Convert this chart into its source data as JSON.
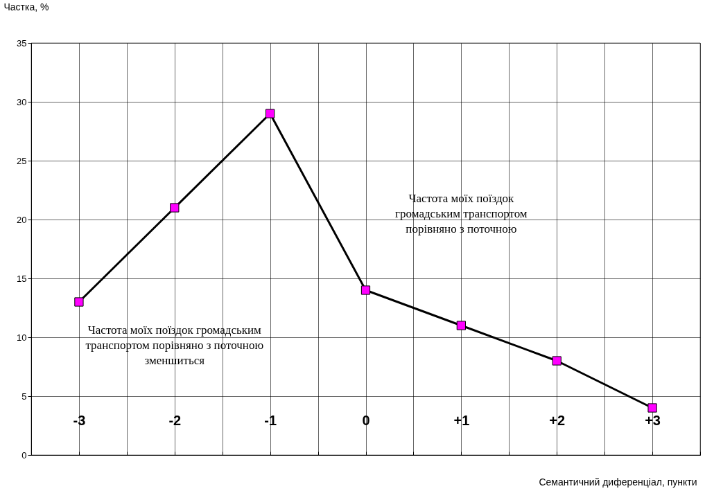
{
  "chart_data": {
    "type": "line",
    "xlabel": "Семантичний диференціал, пункти",
    "ylabel": "Частка, %",
    "categories": [
      "-3",
      "-2",
      "-1",
      "0",
      "+1",
      "+2",
      "+3"
    ],
    "series": [
      {
        "color": "#ff00ff",
        "values": [
          13,
          21,
          29,
          14,
          11,
          8,
          4
        ]
      }
    ],
    "ylim": [
      0,
      35
    ],
    "yticks": [
      0,
      5,
      10,
      15,
      20,
      25,
      30,
      35
    ],
    "grid": true,
    "marker": "square",
    "line_style": "solid",
    "annotations": [
      "Частота моїх поїздок громадським транспортом порівняно з поточною",
      "Частота моїх поїздок громадським транспортом порівняно з поточною зменшиться"
    ]
  }
}
